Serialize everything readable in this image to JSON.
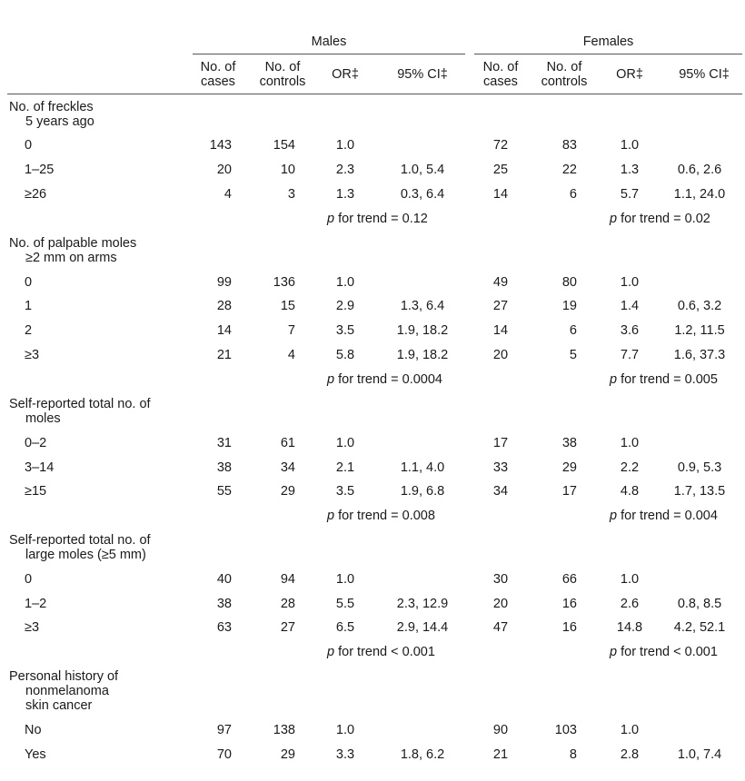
{
  "groups": {
    "males": "Males",
    "females": "Females"
  },
  "columns": {
    "cases_1": "No. of",
    "cases_2": "cases",
    "controls_1": "No. of",
    "controls_2": "controls",
    "or": "OR‡",
    "ci": "95% CI‡"
  },
  "trend_prefix": "p",
  "sections": {
    "s1": {
      "title": [
        "No. of freckles",
        "5 years ago"
      ],
      "rows": [
        {
          "label": "0",
          "m": [
            "143",
            "154",
            "1.0",
            ""
          ],
          "f": [
            "72",
            "83",
            "1.0",
            ""
          ]
        },
        {
          "label": "1–25",
          "m": [
            "20",
            "10",
            "2.3",
            "1.0, 5.4"
          ],
          "f": [
            "25",
            "22",
            "1.3",
            "0.6, 2.6"
          ]
        },
        {
          "label": "≥26",
          "m": [
            "4",
            "3",
            "1.3",
            "0.3, 6.4"
          ],
          "f": [
            "14",
            "6",
            "5.7",
            "1.1, 24.0"
          ]
        }
      ],
      "trend": {
        "m": " for trend = 0.12",
        "f": " for trend = 0.02"
      }
    },
    "s2": {
      "title": [
        "No. of palpable moles",
        "≥2 mm on arms"
      ],
      "rows": [
        {
          "label": "0",
          "m": [
            "99",
            "136",
            "1.0",
            ""
          ],
          "f": [
            "49",
            "80",
            "1.0",
            ""
          ]
        },
        {
          "label": "1",
          "m": [
            "28",
            "15",
            "2.9",
            "1.3, 6.4"
          ],
          "f": [
            "27",
            "19",
            "1.4",
            "0.6, 3.2"
          ]
        },
        {
          "label": "2",
          "m": [
            "14",
            "7",
            "3.5",
            "1.9, 18.2"
          ],
          "f": [
            "14",
            "6",
            "3.6",
            "1.2, 11.5"
          ]
        },
        {
          "label": "≥3",
          "m": [
            "21",
            "4",
            "5.8",
            "1.9, 18.2"
          ],
          "f": [
            "20",
            "5",
            "7.7",
            "1.6, 37.3"
          ]
        }
      ],
      "trend": {
        "m": " for trend = 0.0004",
        "f": " for trend = 0.005"
      }
    },
    "s3": {
      "title": [
        "Self-reported total no. of",
        "moles"
      ],
      "rows": [
        {
          "label": "0–2",
          "m": [
            "31",
            "61",
            "1.0",
            ""
          ],
          "f": [
            "17",
            "38",
            "1.0",
            ""
          ]
        },
        {
          "label": "3–14",
          "m": [
            "38",
            "34",
            "2.1",
            "1.1, 4.0"
          ],
          "f": [
            "33",
            "29",
            "2.2",
            "0.9, 5.3"
          ]
        },
        {
          "label": "≥15",
          "m": [
            "55",
            "29",
            "3.5",
            "1.9, 6.8"
          ],
          "f": [
            "34",
            "17",
            "4.8",
            "1.7, 13.5"
          ]
        }
      ],
      "trend": {
        "m": " for trend = 0.008",
        "f": " for trend = 0.004"
      }
    },
    "s4": {
      "title": [
        "Self-reported total no. of",
        "large moles (≥5 mm)"
      ],
      "rows": [
        {
          "label": "0",
          "m": [
            "40",
            "94",
            "1.0",
            ""
          ],
          "f": [
            "30",
            "66",
            "1.0",
            ""
          ]
        },
        {
          "label": "1–2",
          "m": [
            "38",
            "28",
            "5.5",
            "2.3, 12.9"
          ],
          "f": [
            "20",
            "16",
            "2.6",
            "0.8, 8.5"
          ]
        },
        {
          "label": "≥3",
          "m": [
            "63",
            "27",
            "6.5",
            "2.9, 14.4"
          ],
          "f": [
            "47",
            "16",
            "14.8",
            "4.2, 52.1"
          ]
        }
      ],
      "trend": {
        "m": " for trend < 0.001",
        "f": " for trend < 0.001"
      }
    },
    "s5": {
      "title": [
        "Personal history of",
        "nonmelanoma",
        "skin cancer"
      ],
      "rows": [
        {
          "label": "No",
          "m": [
            "97",
            "138",
            "1.0",
            ""
          ],
          "f": [
            "90",
            "103",
            "1.0",
            ""
          ]
        },
        {
          "label": "Yes",
          "m": [
            "70",
            "29",
            "3.3",
            "1.8, 6.2"
          ],
          "f": [
            "21",
            "8",
            "2.8",
            "1.0, 7.4"
          ]
        }
      ]
    }
  }
}
